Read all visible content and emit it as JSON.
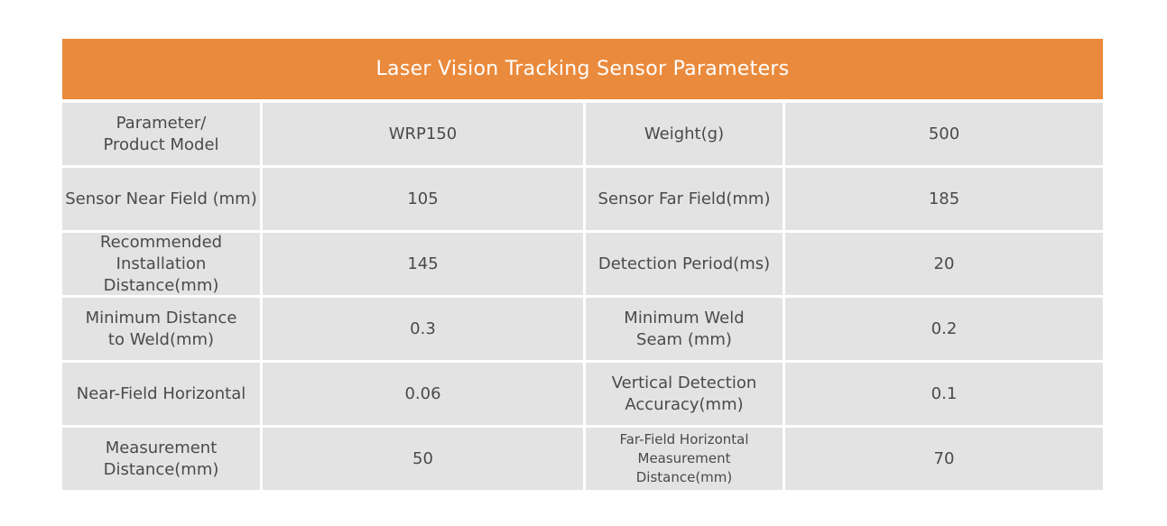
{
  "table": {
    "title": "Laser Vision Tracking Sensor Parameters",
    "rows": [
      {
        "label1": "Parameter/\nProduct Model",
        "value1": "WRP150",
        "label2": "Weight(g)",
        "value2": "500"
      },
      {
        "label1": "Sensor Near Field (mm)",
        "value1": "105",
        "label2": "Sensor Far Field(mm)",
        "value2": "185"
      },
      {
        "label1": "Recommended\nInstallation\nDistance(mm)",
        "value1": "145",
        "label2": "Detection Period(ms)",
        "value2": "20"
      },
      {
        "label1": "Minimum Distance\nto Weld(mm)",
        "value1": "0.3",
        "label2": "Minimum Weld\nSeam (mm)",
        "value2": "0.2"
      },
      {
        "label1": "Near-Field Horizontal",
        "value1": "0.06",
        "label2": "Vertical Detection\nAccuracy(mm)",
        "value2": "0.1"
      },
      {
        "label1": "Measurement\nDistance(mm)",
        "value1": "50",
        "label2": "Far-Field Horizontal\nMeasurement Distance(mm)",
        "value2": "70"
      }
    ]
  }
}
